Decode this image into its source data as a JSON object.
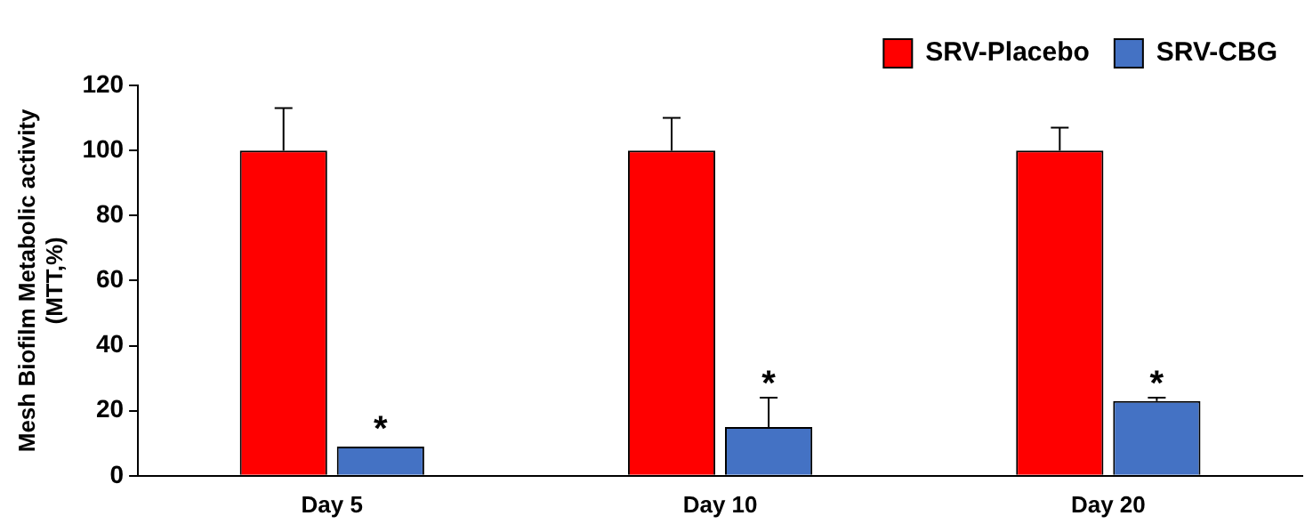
{
  "chart_data": {
    "type": "bar",
    "ylabel": "Mesh Biofilm Metabolic activity (MTT,%)",
    "categories": [
      "Day 5",
      "Day 10",
      "Day 20"
    ],
    "series": [
      {
        "name": "SRV-Placebo",
        "color": "#ff0000",
        "values": [
          100,
          100,
          100
        ],
        "errors": [
          [
            100,
            113
          ],
          [
            100,
            110
          ],
          [
            100,
            107
          ]
        ]
      },
      {
        "name": "SRV-CBG",
        "color": "#4472c4",
        "values": [
          9,
          15,
          23
        ],
        "errors": [
          null,
          [
            15,
            24
          ],
          [
            23,
            24
          ]
        ]
      }
    ],
    "ylim": [
      0,
      120
    ],
    "yticks": [
      0,
      20,
      40,
      60,
      80,
      100,
      120
    ],
    "grid": false,
    "legend": "top right",
    "annotations": [
      {
        "text": "*",
        "x": "Day 5",
        "y": 16
      },
      {
        "text": "*",
        "x": "Day 10",
        "y": 30
      },
      {
        "text": "*",
        "x": "Day 20",
        "y": 30
      }
    ]
  }
}
